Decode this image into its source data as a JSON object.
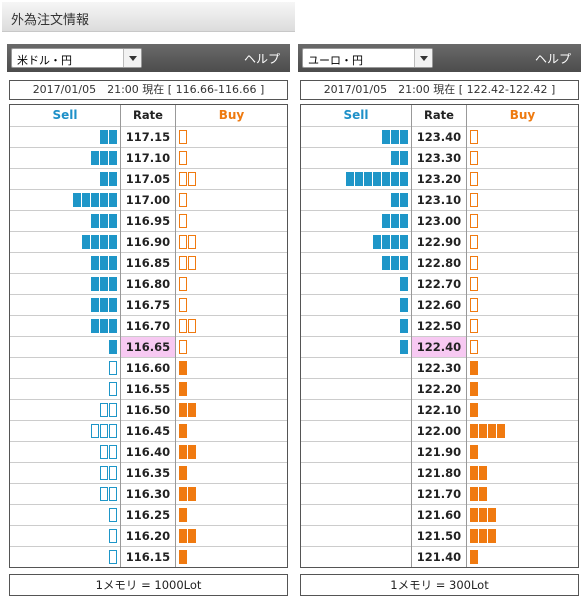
{
  "page": {
    "title": "外為注文情報"
  },
  "colors": {
    "sell": "#1e96c8",
    "buy": "#f07a10",
    "current_rate_bg": "#f7c9f2",
    "toolbar": "#555555"
  },
  "panels": [
    {
      "pair": "米ドル・円",
      "help_label": "ヘルプ",
      "timestamp": "2017/01/05　21:00 現在 [ 116.66-116.66 ]",
      "headers": {
        "sell": "Sell",
        "rate": "Rate",
        "buy": "Buy"
      },
      "footer": "1メモリ = 1000Lot",
      "current_rate": "116.65",
      "rows": [
        {
          "rate": "117.15",
          "sell_filled": 2,
          "sell_outline": 0,
          "buy_filled": 0,
          "buy_outline": 1
        },
        {
          "rate": "117.10",
          "sell_filled": 3,
          "sell_outline": 0,
          "buy_filled": 0,
          "buy_outline": 1
        },
        {
          "rate": "117.05",
          "sell_filled": 2,
          "sell_outline": 0,
          "buy_filled": 0,
          "buy_outline": 2
        },
        {
          "rate": "117.00",
          "sell_filled": 5,
          "sell_outline": 0,
          "buy_filled": 0,
          "buy_outline": 1
        },
        {
          "rate": "116.95",
          "sell_filled": 3,
          "sell_outline": 0,
          "buy_filled": 0,
          "buy_outline": 1
        },
        {
          "rate": "116.90",
          "sell_filled": 4,
          "sell_outline": 0,
          "buy_filled": 0,
          "buy_outline": 2
        },
        {
          "rate": "116.85",
          "sell_filled": 3,
          "sell_outline": 0,
          "buy_filled": 0,
          "buy_outline": 2
        },
        {
          "rate": "116.80",
          "sell_filled": 3,
          "sell_outline": 0,
          "buy_filled": 0,
          "buy_outline": 1
        },
        {
          "rate": "116.75",
          "sell_filled": 3,
          "sell_outline": 0,
          "buy_filled": 0,
          "buy_outline": 1
        },
        {
          "rate": "116.70",
          "sell_filled": 3,
          "sell_outline": 0,
          "buy_filled": 0,
          "buy_outline": 2
        },
        {
          "rate": "116.65",
          "sell_filled": 1,
          "sell_outline": 0,
          "buy_filled": 0,
          "buy_outline": 1
        },
        {
          "rate": "116.60",
          "sell_filled": 0,
          "sell_outline": 1,
          "buy_filled": 1,
          "buy_outline": 0
        },
        {
          "rate": "116.55",
          "sell_filled": 0,
          "sell_outline": 1,
          "buy_filled": 1,
          "buy_outline": 0
        },
        {
          "rate": "116.50",
          "sell_filled": 0,
          "sell_outline": 2,
          "buy_filled": 2,
          "buy_outline": 0
        },
        {
          "rate": "116.45",
          "sell_filled": 0,
          "sell_outline": 3,
          "buy_filled": 1,
          "buy_outline": 0
        },
        {
          "rate": "116.40",
          "sell_filled": 0,
          "sell_outline": 2,
          "buy_filled": 2,
          "buy_outline": 0
        },
        {
          "rate": "116.35",
          "sell_filled": 0,
          "sell_outline": 2,
          "buy_filled": 1,
          "buy_outline": 0
        },
        {
          "rate": "116.30",
          "sell_filled": 0,
          "sell_outline": 2,
          "buy_filled": 2,
          "buy_outline": 0
        },
        {
          "rate": "116.25",
          "sell_filled": 0,
          "sell_outline": 1,
          "buy_filled": 1,
          "buy_outline": 0
        },
        {
          "rate": "116.20",
          "sell_filled": 0,
          "sell_outline": 1,
          "buy_filled": 2,
          "buy_outline": 0
        },
        {
          "rate": "116.15",
          "sell_filled": 0,
          "sell_outline": 1,
          "buy_filled": 1,
          "buy_outline": 0
        }
      ]
    },
    {
      "pair": "ユーロ・円",
      "help_label": "ヘルプ",
      "timestamp": "2017/01/05　21:00 現在 [ 122.42-122.42 ]",
      "headers": {
        "sell": "Sell",
        "rate": "Rate",
        "buy": "Buy"
      },
      "footer": "1メモリ = 300Lot",
      "current_rate": "122.40",
      "rows": [
        {
          "rate": "123.40",
          "sell_filled": 3,
          "sell_outline": 0,
          "buy_filled": 0,
          "buy_outline": 1
        },
        {
          "rate": "123.30",
          "sell_filled": 2,
          "sell_outline": 0,
          "buy_filled": 0,
          "buy_outline": 1
        },
        {
          "rate": "123.20",
          "sell_filled": 7,
          "sell_outline": 0,
          "buy_filled": 0,
          "buy_outline": 1
        },
        {
          "rate": "123.10",
          "sell_filled": 2,
          "sell_outline": 0,
          "buy_filled": 0,
          "buy_outline": 1
        },
        {
          "rate": "123.00",
          "sell_filled": 3,
          "sell_outline": 0,
          "buy_filled": 0,
          "buy_outline": 1
        },
        {
          "rate": "122.90",
          "sell_filled": 4,
          "sell_outline": 0,
          "buy_filled": 0,
          "buy_outline": 1
        },
        {
          "rate": "122.80",
          "sell_filled": 3,
          "sell_outline": 0,
          "buy_filled": 0,
          "buy_outline": 1
        },
        {
          "rate": "122.70",
          "sell_filled": 1,
          "sell_outline": 0,
          "buy_filled": 0,
          "buy_outline": 1
        },
        {
          "rate": "122.60",
          "sell_filled": 1,
          "sell_outline": 0,
          "buy_filled": 0,
          "buy_outline": 1
        },
        {
          "rate": "122.50",
          "sell_filled": 1,
          "sell_outline": 0,
          "buy_filled": 0,
          "buy_outline": 1
        },
        {
          "rate": "122.40",
          "sell_filled": 1,
          "sell_outline": 0,
          "buy_filled": 0,
          "buy_outline": 1
        },
        {
          "rate": "122.30",
          "sell_filled": 0,
          "sell_outline": 0,
          "buy_filled": 1,
          "buy_outline": 0
        },
        {
          "rate": "122.20",
          "sell_filled": 0,
          "sell_outline": 0,
          "buy_filled": 1,
          "buy_outline": 0
        },
        {
          "rate": "122.10",
          "sell_filled": 0,
          "sell_outline": 0,
          "buy_filled": 1,
          "buy_outline": 0
        },
        {
          "rate": "122.00",
          "sell_filled": 0,
          "sell_outline": 0,
          "buy_filled": 4,
          "buy_outline": 0
        },
        {
          "rate": "121.90",
          "sell_filled": 0,
          "sell_outline": 0,
          "buy_filled": 1,
          "buy_outline": 0
        },
        {
          "rate": "121.80",
          "sell_filled": 0,
          "sell_outline": 0,
          "buy_filled": 2,
          "buy_outline": 0
        },
        {
          "rate": "121.70",
          "sell_filled": 0,
          "sell_outline": 0,
          "buy_filled": 2,
          "buy_outline": 0
        },
        {
          "rate": "121.60",
          "sell_filled": 0,
          "sell_outline": 0,
          "buy_filled": 3,
          "buy_outline": 0
        },
        {
          "rate": "121.50",
          "sell_filled": 0,
          "sell_outline": 0,
          "buy_filled": 3,
          "buy_outline": 0
        },
        {
          "rate": "121.40",
          "sell_filled": 0,
          "sell_outline": 0,
          "buy_filled": 1,
          "buy_outline": 0
        }
      ]
    }
  ]
}
